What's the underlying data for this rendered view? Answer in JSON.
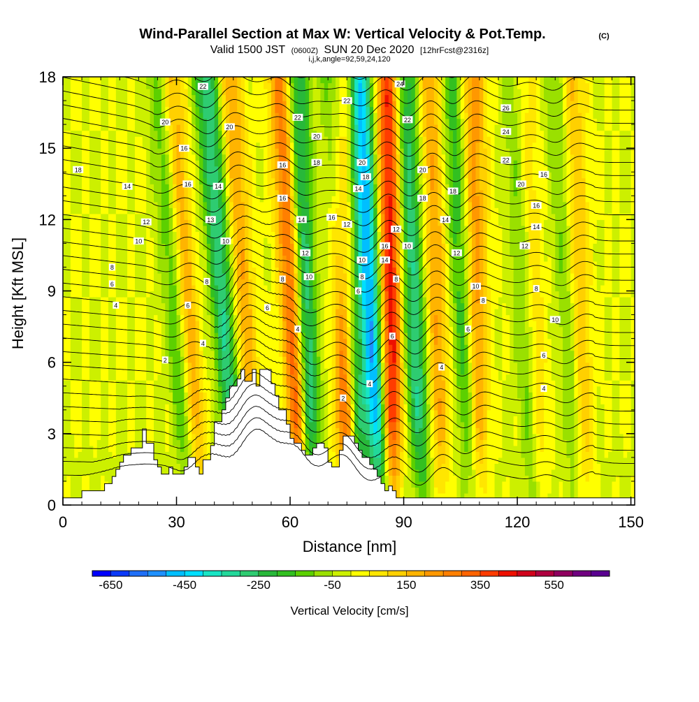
{
  "title": {
    "main": "Wind-Parallel Section at Max W: Vertical Velocity & Pot.Temp.",
    "copyright": "(C)",
    "valid_prefix": "Valid 1500 JST",
    "valid_utc": "(0600Z)",
    "valid_date": "SUN 20 Dec 2020",
    "forecast": "[12hrFcst@2316z]",
    "indices": "i,j,k,angle=92,59,24,120"
  },
  "chart_data": {
    "type": "heatmap",
    "xlabel": "Distance [nm]",
    "ylabel": "Height [Kft MSL]",
    "xlim": [
      0,
      151
    ],
    "ylim": [
      0,
      18
    ],
    "x_ticks": [
      0,
      30,
      60,
      90,
      120,
      150
    ],
    "y_ticks": [
      0,
      3,
      6,
      9,
      12,
      15,
      18
    ],
    "colorbar": {
      "label": "Vertical Velocity [cm/s]",
      "min": -700,
      "max": 700,
      "step": 50,
      "tick_labels": [
        "-650",
        "-450",
        "-250",
        "-50",
        "150",
        "350",
        "550"
      ],
      "colors": [
        "#0000ff",
        "#0b3af8",
        "#1f6ff7",
        "#1e90ff",
        "#00bfff",
        "#00dfff",
        "#18e5c4",
        "#22d89a",
        "#2ecc71",
        "#28b83a",
        "#32c020",
        "#5cd000",
        "#9ae000",
        "#ccf000",
        "#ffff00",
        "#ffe600",
        "#ffd000",
        "#ffb400",
        "#ff9800",
        "#ff7f00",
        "#ff6400",
        "#ff3c00",
        "#ee1000",
        "#d0021b",
        "#b00040",
        "#900060",
        "#700080",
        "#5a0090"
      ]
    },
    "terrain": {
      "distance_nm": [
        0,
        5,
        5,
        11,
        11,
        13,
        13,
        14,
        14,
        15,
        15,
        16,
        16,
        18,
        18,
        21,
        21,
        22,
        22,
        24,
        24,
        25,
        25,
        26,
        26,
        28,
        28,
        29,
        29,
        32,
        32,
        33,
        33,
        35,
        35,
        36,
        36,
        37,
        37,
        39,
        39,
        40,
        40,
        42,
        42,
        43,
        43,
        44,
        44,
        46,
        46,
        47,
        47,
        48,
        48,
        50,
        50,
        51,
        51,
        52,
        52,
        55,
        55,
        56,
        56,
        57,
        57,
        59,
        59,
        60,
        60,
        61,
        61,
        63,
        63,
        64,
        64,
        66,
        66,
        67,
        67,
        69,
        69,
        70,
        70,
        71,
        71,
        73,
        73,
        74,
        74,
        77,
        77,
        78,
        78,
        79,
        79,
        81,
        81,
        82,
        82,
        83,
        83,
        84,
        84,
        85,
        85,
        86,
        86,
        87,
        87,
        88,
        88,
        95,
        95,
        100,
        100,
        151
      ],
      "height_kft": [
        0.3,
        0.3,
        0.6,
        0.6,
        0.9,
        0.9,
        1.2,
        1.2,
        1.5,
        1.5,
        1.8,
        1.8,
        2.1,
        2.1,
        2.4,
        2.4,
        3.2,
        3.2,
        2.6,
        2.6,
        1.9,
        1.9,
        1.6,
        1.6,
        1.3,
        1.3,
        1.6,
        1.6,
        1.3,
        1.3,
        1.6,
        1.6,
        2.0,
        2.0,
        1.6,
        1.6,
        1.3,
        1.3,
        1.9,
        1.9,
        2.5,
        2.5,
        3.5,
        3.5,
        4.0,
        4.0,
        4.5,
        4.5,
        5.0,
        5.0,
        5.3,
        5.3,
        5.7,
        5.7,
        5.2,
        5.2,
        5.7,
        5.7,
        5.0,
        5.0,
        5.7,
        5.7,
        5.1,
        5.1,
        4.6,
        4.6,
        4.0,
        4.0,
        3.4,
        3.4,
        2.8,
        2.8,
        2.6,
        2.6,
        2.3,
        2.3,
        2.1,
        2.1,
        2.4,
        2.4,
        2.6,
        2.6,
        2.4,
        2.4,
        1.8,
        1.8,
        1.6,
        1.6,
        2.3,
        2.3,
        2.9,
        2.9,
        2.6,
        2.6,
        2.3,
        2.3,
        2.0,
        2.0,
        1.7,
        1.7,
        1.5,
        1.5,
        1.2,
        1.2,
        0.9,
        0.9,
        0.6,
        0.6,
        0.8,
        0.8,
        0.6,
        0.6,
        0.3,
        0.3,
        0.3,
        0.3,
        0.3,
        0.3
      ]
    },
    "updraft_bands": [
      {
        "x_surface_nm": 36,
        "x_top_nm": 28,
        "peak_cm_s": 300
      },
      {
        "x_surface_nm": 51,
        "x_top_nm": 44,
        "peak_cm_s": 200
      },
      {
        "x_surface_nm": 63,
        "x_top_nm": 58,
        "peak_cm_s": 400
      },
      {
        "x_surface_nm": 75,
        "x_top_nm": 74,
        "peak_cm_s": 400
      },
      {
        "x_surface_nm": 87,
        "x_top_nm": 86,
        "peak_cm_s": 450
      },
      {
        "x_surface_nm": 100,
        "x_top_nm": 97,
        "peak_cm_s": 200
      },
      {
        "x_surface_nm": 110,
        "x_top_nm": 108,
        "peak_cm_s": 250
      },
      {
        "x_surface_nm": 126,
        "x_top_nm": 121,
        "peak_cm_s": 300
      },
      {
        "x_surface_nm": 138,
        "x_top_nm": 134,
        "peak_cm_s": 200
      }
    ],
    "downdraft_bands": [
      {
        "x_surface_nm": 34,
        "x_top_nm": 26,
        "peak_cm_s": -250
      },
      {
        "x_surface_nm": 46,
        "x_top_nm": 38,
        "peak_cm_s": -300
      },
      {
        "x_surface_nm": 66,
        "x_top_nm": 61,
        "peak_cm_s": -350
      },
      {
        "x_surface_nm": 79,
        "x_top_nm": 72,
        "peak_cm_s": -300
      },
      {
        "x_surface_nm": 84,
        "x_top_nm": 78,
        "peak_cm_s": -500
      },
      {
        "x_surface_nm": 95,
        "x_top_nm": 90,
        "peak_cm_s": -300
      },
      {
        "x_surface_nm": 108,
        "x_top_nm": 103,
        "peak_cm_s": -200
      },
      {
        "x_surface_nm": 125,
        "x_top_nm": 120,
        "peak_cm_s": -300
      },
      {
        "x_surface_nm": 136,
        "x_top_nm": 131,
        "peak_cm_s": -150
      }
    ],
    "theta_contour_labels": [
      {
        "x": 4,
        "y": 14.1,
        "text": "18"
      },
      {
        "x": 17,
        "y": 13.4,
        "text": "14"
      },
      {
        "x": 22,
        "y": 11.9,
        "text": "12"
      },
      {
        "x": 20,
        "y": 11.1,
        "text": "10"
      },
      {
        "x": 13,
        "y": 10.0,
        "text": "8"
      },
      {
        "x": 13,
        "y": 9.3,
        "text": "6"
      },
      {
        "x": 14,
        "y": 8.4,
        "text": "4"
      },
      {
        "x": 27,
        "y": 16.1,
        "text": "20"
      },
      {
        "x": 32,
        "y": 15.0,
        "text": "16"
      },
      {
        "x": 33,
        "y": 13.5,
        "text": "16"
      },
      {
        "x": 37,
        "y": 17.6,
        "text": "22"
      },
      {
        "x": 44,
        "y": 15.9,
        "text": "20"
      },
      {
        "x": 41,
        "y": 13.4,
        "text": "14"
      },
      {
        "x": 39,
        "y": 12.0,
        "text": "13"
      },
      {
        "x": 43,
        "y": 11.1,
        "text": "10"
      },
      {
        "x": 38,
        "y": 9.4,
        "text": "8"
      },
      {
        "x": 33,
        "y": 8.4,
        "text": "6"
      },
      {
        "x": 37,
        "y": 6.8,
        "text": "4"
      },
      {
        "x": 27,
        "y": 6.1,
        "text": "2"
      },
      {
        "x": 58,
        "y": 14.3,
        "text": "16"
      },
      {
        "x": 58,
        "y": 12.9,
        "text": "16"
      },
      {
        "x": 62,
        "y": 16.3,
        "text": "22"
      },
      {
        "x": 67,
        "y": 15.5,
        "text": "20"
      },
      {
        "x": 67,
        "y": 14.4,
        "text": "18"
      },
      {
        "x": 63,
        "y": 12.0,
        "text": "14"
      },
      {
        "x": 64,
        "y": 10.6,
        "text": "12"
      },
      {
        "x": 58,
        "y": 9.5,
        "text": "8"
      },
      {
        "x": 54,
        "y": 8.3,
        "text": "6"
      },
      {
        "x": 62,
        "y": 7.4,
        "text": "4"
      },
      {
        "x": 65,
        "y": 9.6,
        "text": "10"
      },
      {
        "x": 71,
        "y": 12.1,
        "text": "16"
      },
      {
        "x": 75,
        "y": 17.0,
        "text": "22"
      },
      {
        "x": 79,
        "y": 14.4,
        "text": "20"
      },
      {
        "x": 80,
        "y": 13.8,
        "text": "18"
      },
      {
        "x": 78,
        "y": 13.3,
        "text": "14"
      },
      {
        "x": 75,
        "y": 11.8,
        "text": "12"
      },
      {
        "x": 79,
        "y": 10.3,
        "text": "10"
      },
      {
        "x": 79,
        "y": 9.6,
        "text": "8"
      },
      {
        "x": 78,
        "y": 9.0,
        "text": "6"
      },
      {
        "x": 81,
        "y": 5.1,
        "text": "4"
      },
      {
        "x": 74,
        "y": 4.5,
        "text": "2"
      },
      {
        "x": 89,
        "y": 17.7,
        "text": "24"
      },
      {
        "x": 91,
        "y": 16.2,
        "text": "22"
      },
      {
        "x": 95,
        "y": 14.1,
        "text": "20"
      },
      {
        "x": 95,
        "y": 12.9,
        "text": "18"
      },
      {
        "x": 103,
        "y": 13.2,
        "text": "18"
      },
      {
        "x": 101,
        "y": 12.0,
        "text": "14"
      },
      {
        "x": 88,
        "y": 11.6,
        "text": "12"
      },
      {
        "x": 85,
        "y": 10.9,
        "text": "16"
      },
      {
        "x": 91,
        "y": 10.9,
        "text": "10"
      },
      {
        "x": 85,
        "y": 10.3,
        "text": "14"
      },
      {
        "x": 104,
        "y": 10.6,
        "text": "12"
      },
      {
        "x": 88,
        "y": 9.5,
        "text": "8"
      },
      {
        "x": 109,
        "y": 9.2,
        "text": "10"
      },
      {
        "x": 111,
        "y": 8.6,
        "text": "8"
      },
      {
        "x": 107,
        "y": 7.4,
        "text": "6"
      },
      {
        "x": 87,
        "y": 7.1,
        "text": "6"
      },
      {
        "x": 100,
        "y": 5.8,
        "text": "4"
      },
      {
        "x": 117,
        "y": 16.7,
        "text": "26"
      },
      {
        "x": 117,
        "y": 15.7,
        "text": "24"
      },
      {
        "x": 117,
        "y": 14.5,
        "text": "22"
      },
      {
        "x": 121,
        "y": 13.5,
        "text": "20"
      },
      {
        "x": 127,
        "y": 13.9,
        "text": "16"
      },
      {
        "x": 125,
        "y": 12.6,
        "text": "16"
      },
      {
        "x": 125,
        "y": 11.7,
        "text": "14"
      },
      {
        "x": 122,
        "y": 10.9,
        "text": "12"
      },
      {
        "x": 125,
        "y": 9.1,
        "text": "8"
      },
      {
        "x": 130,
        "y": 7.8,
        "text": "10"
      },
      {
        "x": 127,
        "y": 6.3,
        "text": "6"
      },
      {
        "x": 127,
        "y": 4.9,
        "text": "4"
      }
    ]
  }
}
